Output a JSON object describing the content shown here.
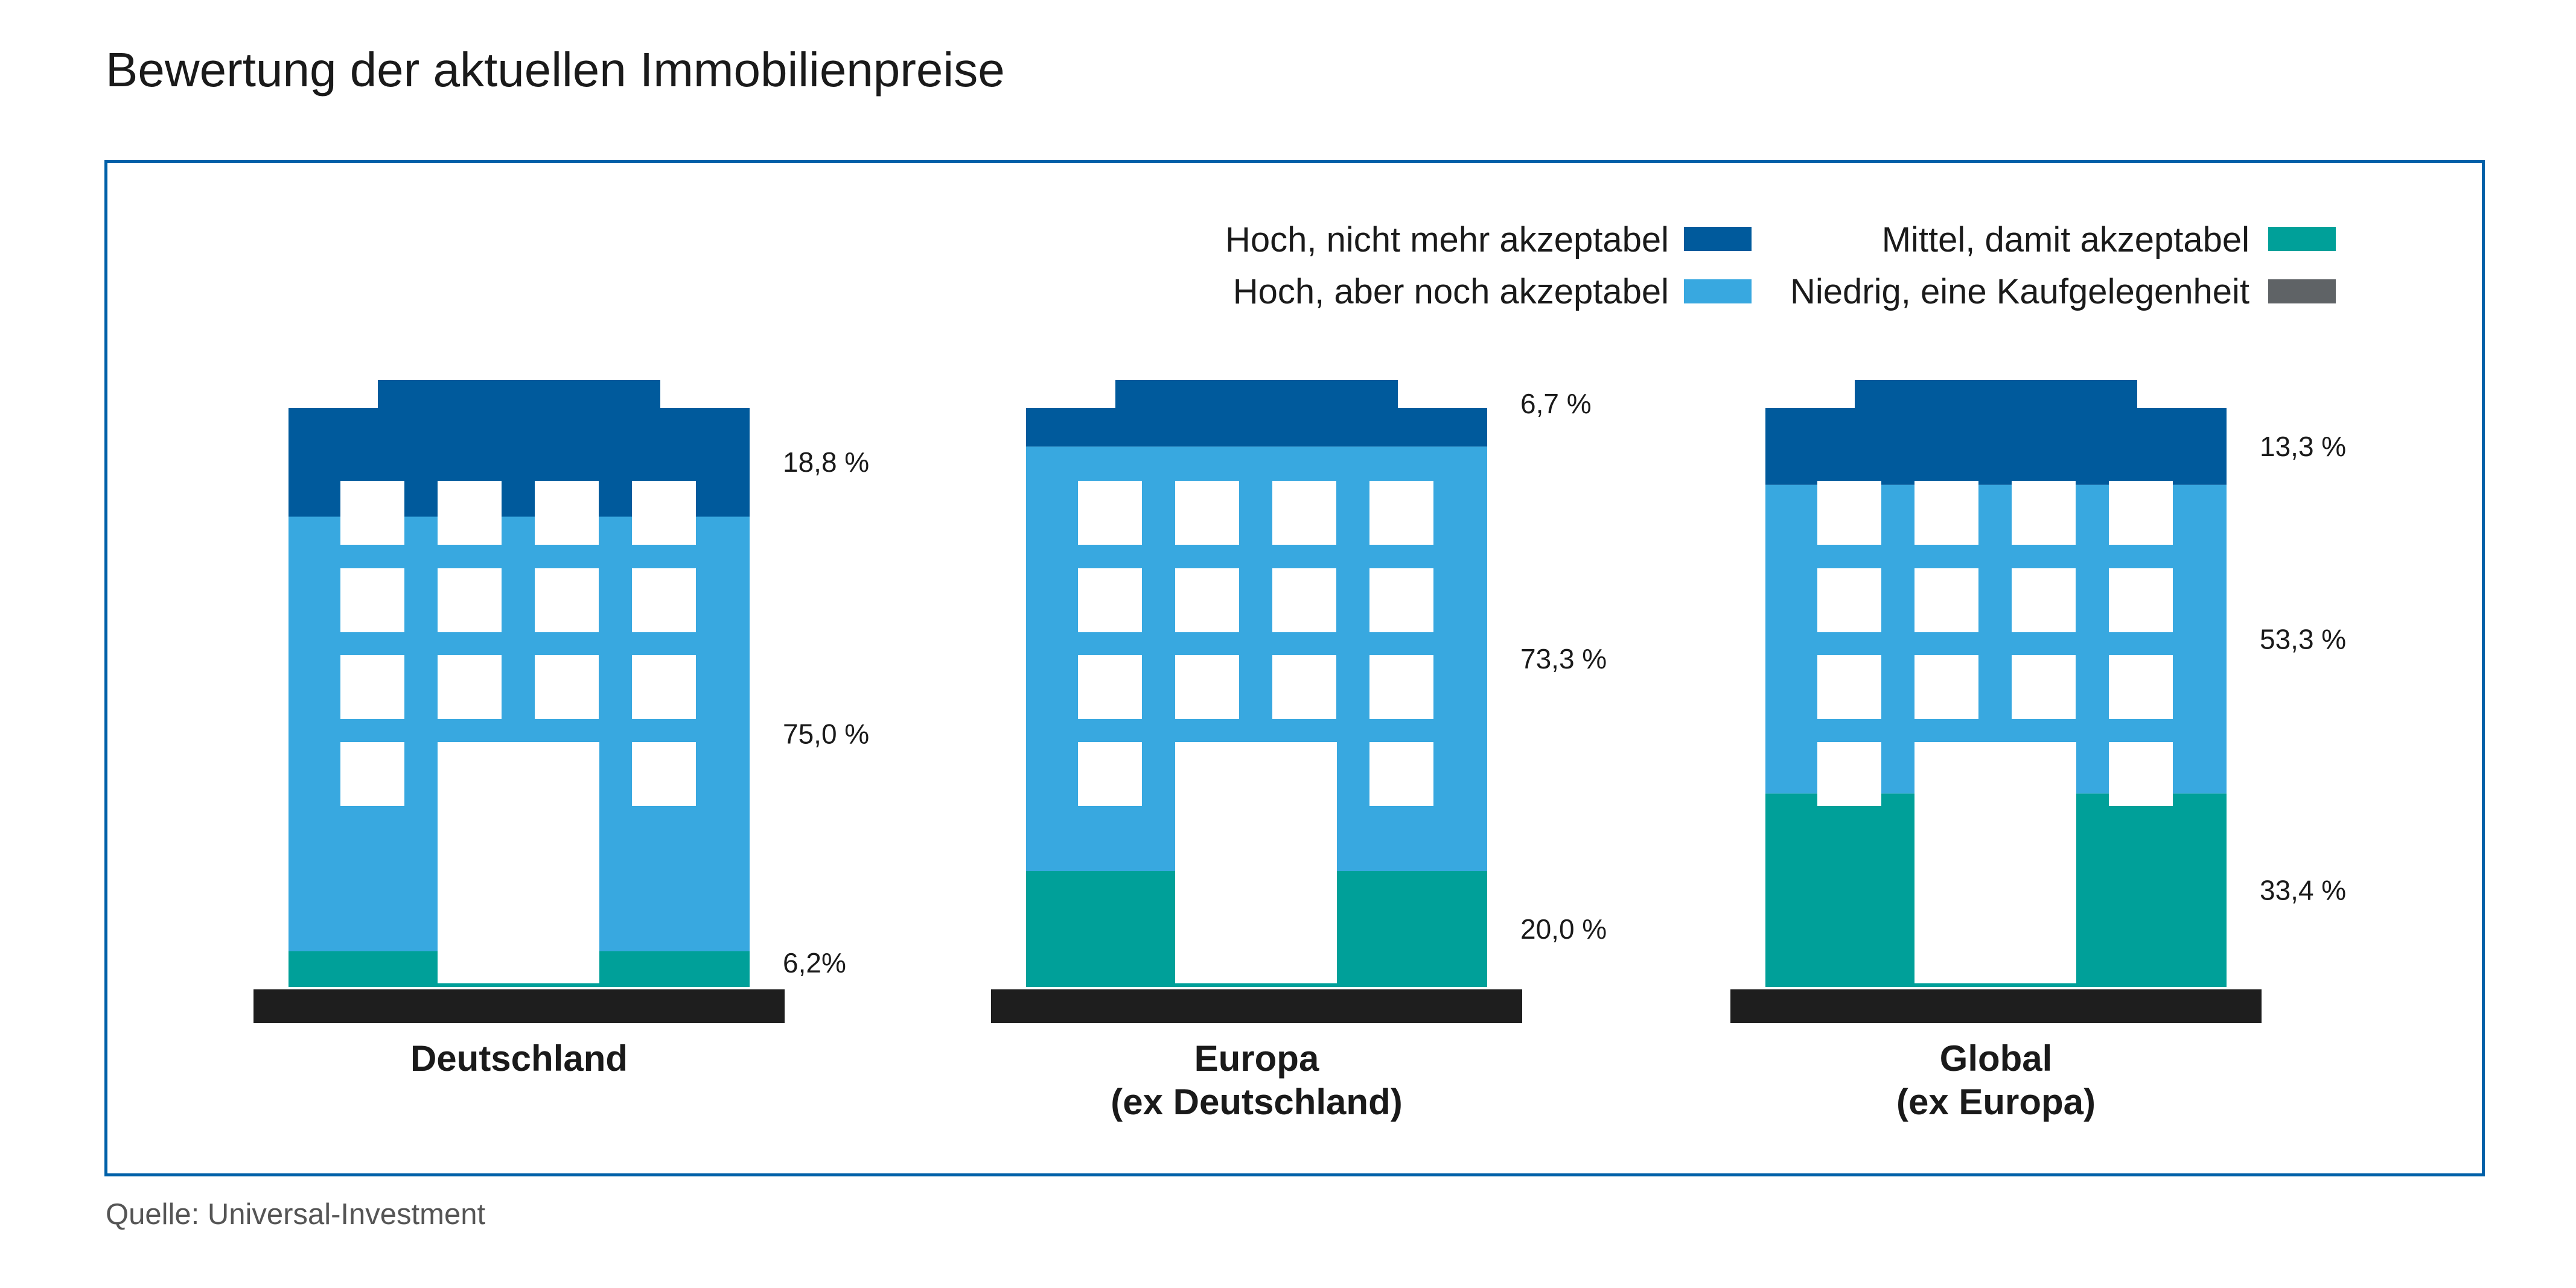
{
  "source": "Quelle: Universal-Investment",
  "colors": {
    "hoch_nicht_akzeptabel": "#005a9c",
    "hoch_akzeptabel": "#38a8e0",
    "mittel": "#00a099",
    "niedrig": "#5f6366",
    "ground": "#1e1e1e",
    "frame": "#0060a8"
  },
  "chart_data": {
    "type": "bar",
    "stacked": true,
    "title": "Bewertung der aktuellen Immobilienpreise",
    "categories": [
      [
        "Deutschland"
      ],
      [
        "Europa",
        "(ex Deutschland)"
      ],
      [
        "Global",
        "(ex Europa)"
      ]
    ],
    "series": [
      {
        "name": "Mittel, damit akzeptabel",
        "color": "#00a099",
        "values": [
          6.2,
          20.0,
          33.4
        ],
        "labels": [
          "6,2%",
          "20,0 %",
          "33,4 %"
        ]
      },
      {
        "name": "Hoch, aber noch akzeptabel",
        "color": "#38a8e0",
        "values": [
          75.0,
          73.3,
          53.3
        ],
        "labels": [
          "75,0 %",
          "73,3 %",
          "53,3 %"
        ]
      },
      {
        "name": "Hoch, nicht mehr akzeptabel",
        "color": "#005a9c",
        "values": [
          18.8,
          6.7,
          13.3
        ],
        "labels": [
          "18,8 %",
          "6,7 %",
          "13,3 %"
        ]
      },
      {
        "name": "Niedrig, eine Kaufgelegenheit",
        "color": "#5f6366",
        "values": [
          0,
          0,
          0
        ],
        "labels": [
          "",
          "",
          ""
        ]
      }
    ],
    "legend": {
      "placement": "top-right",
      "items": [
        {
          "name": "Hoch, nicht mehr akzeptabel",
          "color": "#005a9c"
        },
        {
          "name": "Hoch, aber noch akzeptabel",
          "color": "#38a8e0"
        },
        {
          "name": "Mittel, damit akzeptabel",
          "color": "#00a099"
        },
        {
          "name": "Niedrig, eine Kaufgelegenheit",
          "color": "#5f6366"
        }
      ]
    },
    "ylim": [
      0,
      100
    ]
  }
}
